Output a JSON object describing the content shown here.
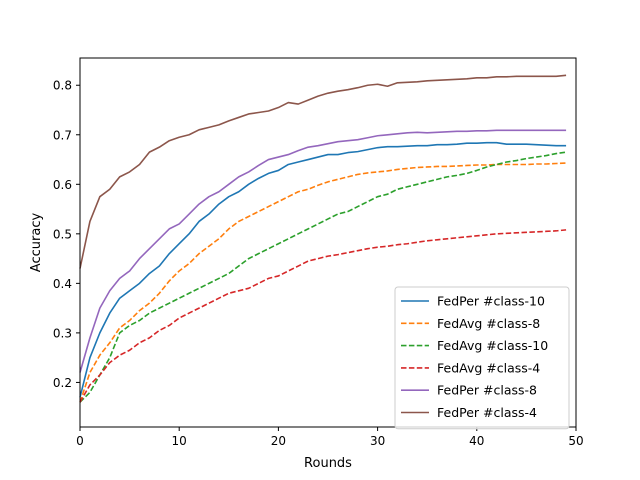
{
  "chart_data": {
    "type": "line",
    "xlabel": "Rounds",
    "ylabel": "Accuracy",
    "xlim": [
      0,
      50
    ],
    "ylim": [
      0.11,
      0.855
    ],
    "xticks": [
      0,
      10,
      20,
      30,
      40,
      50
    ],
    "yticks": [
      0.2,
      0.3,
      0.4,
      0.5,
      0.6,
      0.7,
      0.8
    ],
    "grid": false,
    "legend_position": "bottom-right",
    "x": [
      0,
      1,
      2,
      3,
      4,
      5,
      6,
      7,
      8,
      9,
      10,
      11,
      12,
      13,
      14,
      15,
      16,
      17,
      18,
      19,
      20,
      21,
      22,
      23,
      24,
      25,
      26,
      27,
      28,
      29,
      30,
      31,
      32,
      33,
      34,
      35,
      36,
      37,
      38,
      39,
      40,
      41,
      42,
      43,
      44,
      45,
      46,
      47,
      48,
      49
    ],
    "series": [
      {
        "name": "FedPer #class-10",
        "color": "#1f77b4",
        "dash": "solid",
        "values": [
          0.17,
          0.25,
          0.3,
          0.34,
          0.37,
          0.385,
          0.4,
          0.42,
          0.435,
          0.46,
          0.48,
          0.5,
          0.525,
          0.54,
          0.56,
          0.575,
          0.585,
          0.6,
          0.612,
          0.622,
          0.628,
          0.64,
          0.645,
          0.65,
          0.655,
          0.66,
          0.66,
          0.664,
          0.666,
          0.67,
          0.674,
          0.676,
          0.676,
          0.677,
          0.678,
          0.678,
          0.68,
          0.68,
          0.681,
          0.683,
          0.683,
          0.684,
          0.684,
          0.681,
          0.681,
          0.681,
          0.68,
          0.679,
          0.678,
          0.678
        ]
      },
      {
        "name": "FedAvg #class-8",
        "color": "#ff7f0e",
        "dash": "dashed",
        "values": [
          0.16,
          0.22,
          0.255,
          0.28,
          0.31,
          0.325,
          0.345,
          0.36,
          0.38,
          0.405,
          0.425,
          0.44,
          0.46,
          0.475,
          0.49,
          0.51,
          0.525,
          0.535,
          0.545,
          0.555,
          0.565,
          0.575,
          0.585,
          0.59,
          0.598,
          0.605,
          0.61,
          0.615,
          0.62,
          0.623,
          0.625,
          0.627,
          0.63,
          0.632,
          0.634,
          0.635,
          0.636,
          0.636,
          0.637,
          0.638,
          0.639,
          0.639,
          0.64,
          0.64,
          0.64,
          0.64,
          0.641,
          0.641,
          0.642,
          0.643
        ]
      },
      {
        "name": "FedAvg #class-10",
        "color": "#2ca02c",
        "dash": "dashed",
        "values": [
          0.16,
          0.18,
          0.215,
          0.25,
          0.3,
          0.315,
          0.325,
          0.34,
          0.35,
          0.36,
          0.37,
          0.38,
          0.39,
          0.4,
          0.41,
          0.42,
          0.435,
          0.45,
          0.46,
          0.47,
          0.48,
          0.49,
          0.5,
          0.51,
          0.52,
          0.53,
          0.54,
          0.545,
          0.555,
          0.565,
          0.575,
          0.58,
          0.59,
          0.595,
          0.6,
          0.605,
          0.61,
          0.615,
          0.618,
          0.622,
          0.628,
          0.635,
          0.64,
          0.645,
          0.648,
          0.652,
          0.655,
          0.658,
          0.662,
          0.665
        ]
      },
      {
        "name": "FedAvg #class-4",
        "color": "#d62728",
        "dash": "dashed",
        "values": [
          0.16,
          0.195,
          0.215,
          0.24,
          0.255,
          0.265,
          0.28,
          0.29,
          0.305,
          0.315,
          0.33,
          0.34,
          0.35,
          0.36,
          0.37,
          0.38,
          0.385,
          0.39,
          0.4,
          0.41,
          0.415,
          0.425,
          0.435,
          0.445,
          0.45,
          0.455,
          0.458,
          0.462,
          0.466,
          0.47,
          0.473,
          0.475,
          0.478,
          0.48,
          0.483,
          0.486,
          0.488,
          0.49,
          0.492,
          0.494,
          0.496,
          0.498,
          0.5,
          0.501,
          0.502,
          0.503,
          0.504,
          0.505,
          0.506,
          0.508
        ]
      },
      {
        "name": "FedPer #class-8",
        "color": "#9467bd",
        "dash": "solid",
        "values": [
          0.22,
          0.29,
          0.35,
          0.385,
          0.41,
          0.425,
          0.45,
          0.47,
          0.49,
          0.51,
          0.52,
          0.54,
          0.56,
          0.575,
          0.585,
          0.6,
          0.615,
          0.625,
          0.638,
          0.65,
          0.655,
          0.66,
          0.668,
          0.675,
          0.678,
          0.682,
          0.686,
          0.688,
          0.69,
          0.694,
          0.698,
          0.7,
          0.702,
          0.704,
          0.705,
          0.704,
          0.705,
          0.706,
          0.707,
          0.707,
          0.708,
          0.708,
          0.709,
          0.709,
          0.709,
          0.709,
          0.709,
          0.709,
          0.709,
          0.709
        ]
      },
      {
        "name": "FedPer #class-4",
        "color": "#8c564b",
        "dash": "solid",
        "values": [
          0.43,
          0.525,
          0.575,
          0.59,
          0.615,
          0.625,
          0.64,
          0.665,
          0.675,
          0.688,
          0.695,
          0.7,
          0.71,
          0.715,
          0.72,
          0.728,
          0.735,
          0.742,
          0.745,
          0.748,
          0.755,
          0.765,
          0.762,
          0.77,
          0.778,
          0.784,
          0.788,
          0.791,
          0.795,
          0.8,
          0.802,
          0.798,
          0.805,
          0.806,
          0.807,
          0.809,
          0.81,
          0.811,
          0.812,
          0.813,
          0.815,
          0.815,
          0.817,
          0.817,
          0.818,
          0.818,
          0.818,
          0.818,
          0.818,
          0.82
        ]
      }
    ]
  }
}
